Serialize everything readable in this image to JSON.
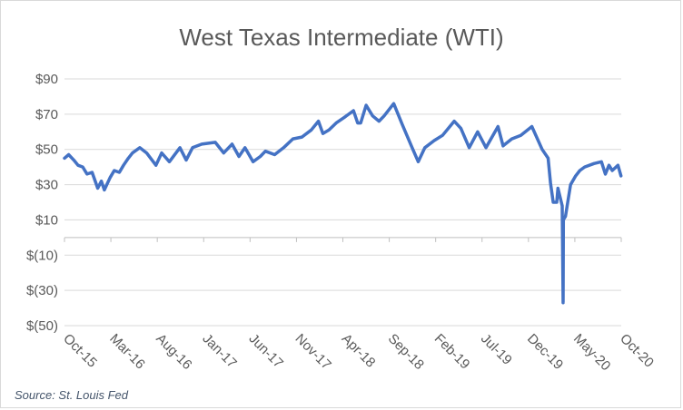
{
  "chart_data": {
    "type": "line",
    "title": "West Texas Intermediate (WTI)",
    "source": "Source: St. Louis Fed",
    "xlabel": "",
    "ylabel": "",
    "x_ticks": [
      "Oct-15",
      "Mar-16",
      "Aug-16",
      "Jan-17",
      "Jun-17",
      "Nov-17",
      "Apr-18",
      "Sep-18",
      "Feb-19",
      "Jul-19",
      "Dec-19",
      "May-20",
      "Oct-20"
    ],
    "y_ticks": [
      {
        "value": 90,
        "label": "$90"
      },
      {
        "value": 70,
        "label": "$70"
      },
      {
        "value": 50,
        "label": "$50"
      },
      {
        "value": 30,
        "label": "$30"
      },
      {
        "value": 10,
        "label": "$10"
      },
      {
        "value": -10,
        "label": "$(10)"
      },
      {
        "value": -30,
        "label": "$(30)"
      },
      {
        "value": -50,
        "label": "$(50)"
      }
    ],
    "ylim": [
      -50,
      90
    ],
    "grid": true,
    "line_color": "#4472c4",
    "series": [
      {
        "values": [
          {
            "x": "2015-10-01",
            "y": 45
          },
          {
            "x": "2015-10-15",
            "y": 47
          },
          {
            "x": "2015-11-01",
            "y": 44
          },
          {
            "x": "2015-11-15",
            "y": 41
          },
          {
            "x": "2015-12-01",
            "y": 40
          },
          {
            "x": "2015-12-15",
            "y": 36
          },
          {
            "x": "2016-01-01",
            "y": 37
          },
          {
            "x": "2016-01-20",
            "y": 28
          },
          {
            "x": "2016-02-01",
            "y": 32
          },
          {
            "x": "2016-02-11",
            "y": 27
          },
          {
            "x": "2016-03-01",
            "y": 34
          },
          {
            "x": "2016-03-15",
            "y": 38
          },
          {
            "x": "2016-04-01",
            "y": 37
          },
          {
            "x": "2016-04-15",
            "y": 41
          },
          {
            "x": "2016-05-01",
            "y": 45
          },
          {
            "x": "2016-05-15",
            "y": 48
          },
          {
            "x": "2016-06-08",
            "y": 51
          },
          {
            "x": "2016-07-01",
            "y": 48
          },
          {
            "x": "2016-08-01",
            "y": 41
          },
          {
            "x": "2016-08-20",
            "y": 48
          },
          {
            "x": "2016-09-15",
            "y": 43
          },
          {
            "x": "2016-10-20",
            "y": 51
          },
          {
            "x": "2016-11-10",
            "y": 44
          },
          {
            "x": "2016-12-01",
            "y": 51
          },
          {
            "x": "2017-01-01",
            "y": 53
          },
          {
            "x": "2017-02-15",
            "y": 54
          },
          {
            "x": "2017-03-15",
            "y": 48
          },
          {
            "x": "2017-04-12",
            "y": 53
          },
          {
            "x": "2017-05-05",
            "y": 46
          },
          {
            "x": "2017-05-25",
            "y": 51
          },
          {
            "x": "2017-06-21",
            "y": 43
          },
          {
            "x": "2017-07-15",
            "y": 46
          },
          {
            "x": "2017-08-01",
            "y": 49
          },
          {
            "x": "2017-09-01",
            "y": 47
          },
          {
            "x": "2017-10-01",
            "y": 51
          },
          {
            "x": "2017-11-01",
            "y": 56
          },
          {
            "x": "2017-12-01",
            "y": 57
          },
          {
            "x": "2018-01-01",
            "y": 61
          },
          {
            "x": "2018-01-25",
            "y": 66
          },
          {
            "x": "2018-02-09",
            "y": 59
          },
          {
            "x": "2018-03-01",
            "y": 61
          },
          {
            "x": "2018-03-25",
            "y": 65
          },
          {
            "x": "2018-04-20",
            "y": 68
          },
          {
            "x": "2018-05-22",
            "y": 72
          },
          {
            "x": "2018-06-05",
            "y": 65
          },
          {
            "x": "2018-06-15",
            "y": 65
          },
          {
            "x": "2018-07-03",
            "y": 75
          },
          {
            "x": "2018-07-25",
            "y": 69
          },
          {
            "x": "2018-08-15",
            "y": 66
          },
          {
            "x": "2018-09-01",
            "y": 69
          },
          {
            "x": "2018-10-03",
            "y": 76
          },
          {
            "x": "2018-11-01",
            "y": 64
          },
          {
            "x": "2018-12-01",
            "y": 52
          },
          {
            "x": "2018-12-24",
            "y": 43
          },
          {
            "x": "2019-01-15",
            "y": 51
          },
          {
            "x": "2019-02-15",
            "y": 55
          },
          {
            "x": "2019-03-15",
            "y": 58
          },
          {
            "x": "2019-04-23",
            "y": 66
          },
          {
            "x": "2019-05-15",
            "y": 62
          },
          {
            "x": "2019-06-12",
            "y": 51
          },
          {
            "x": "2019-07-10",
            "y": 60
          },
          {
            "x": "2019-08-07",
            "y": 51
          },
          {
            "x": "2019-09-16",
            "y": 63
          },
          {
            "x": "2019-10-03",
            "y": 52
          },
          {
            "x": "2019-11-01",
            "y": 56
          },
          {
            "x": "2019-12-01",
            "y": 58
          },
          {
            "x": "2020-01-07",
            "y": 63
          },
          {
            "x": "2020-02-10",
            "y": 50
          },
          {
            "x": "2020-03-01",
            "y": 45
          },
          {
            "x": "2020-03-09",
            "y": 31
          },
          {
            "x": "2020-03-18",
            "y": 20
          },
          {
            "x": "2020-03-30",
            "y": 20
          },
          {
            "x": "2020-04-03",
            "y": 28
          },
          {
            "x": "2020-04-17",
            "y": 18
          },
          {
            "x": "2020-04-20",
            "y": -37
          },
          {
            "x": "2020-04-21",
            "y": 10
          },
          {
            "x": "2020-04-28",
            "y": 12
          },
          {
            "x": "2020-05-15",
            "y": 30
          },
          {
            "x": "2020-06-01",
            "y": 35
          },
          {
            "x": "2020-06-15",
            "y": 38
          },
          {
            "x": "2020-07-01",
            "y": 40
          },
          {
            "x": "2020-08-01",
            "y": 42
          },
          {
            "x": "2020-08-26",
            "y": 43
          },
          {
            "x": "2020-09-08",
            "y": 36
          },
          {
            "x": "2020-09-20",
            "y": 41
          },
          {
            "x": "2020-10-01",
            "y": 38
          },
          {
            "x": "2020-10-20",
            "y": 41
          },
          {
            "x": "2020-10-30",
            "y": 35
          }
        ]
      }
    ]
  }
}
